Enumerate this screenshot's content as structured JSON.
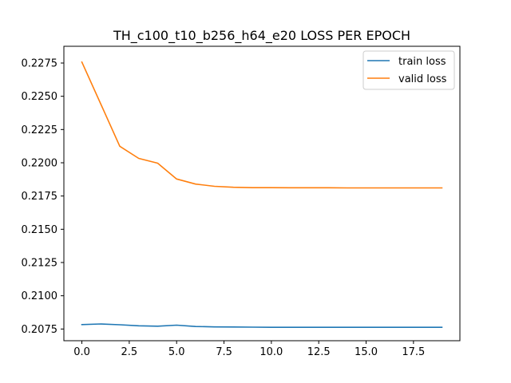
{
  "chart_data": {
    "type": "line",
    "title": "TH_c100_t10_b256_h64_e20 LOSS PER EPOCH",
    "xlabel": "",
    "ylabel": "",
    "x": [
      0,
      1,
      2,
      3,
      4,
      5,
      6,
      7,
      8,
      9,
      10,
      11,
      12,
      13,
      14,
      15,
      16,
      17,
      18,
      19
    ],
    "xlim": [
      -0.95,
      19.95
    ],
    "ylim": [
      0.20662,
      0.22876
    ],
    "xticks": [
      0.0,
      2.5,
      5.0,
      7.5,
      10.0,
      12.5,
      15.0,
      17.5
    ],
    "xtick_labels": [
      "0.0",
      "2.5",
      "5.0",
      "7.5",
      "10.0",
      "12.5",
      "15.0",
      "17.5"
    ],
    "yticks": [
      0.2075,
      0.21,
      0.2125,
      0.215,
      0.2175,
      0.22,
      0.2225,
      0.225,
      0.2275
    ],
    "ytick_labels": [
      "0.2075",
      "0.2100",
      "0.2125",
      "0.2150",
      "0.2175",
      "0.2200",
      "0.2225",
      "0.2250",
      "0.2275"
    ],
    "grid": false,
    "legend_position": "top-right",
    "series": [
      {
        "name": "train loss",
        "color": "#1f77b4",
        "values": [
          0.20783,
          0.20788,
          0.20782,
          0.20774,
          0.20771,
          0.20779,
          0.20769,
          0.20766,
          0.20765,
          0.20764,
          0.20763,
          0.20763,
          0.20763,
          0.20763,
          0.20763,
          0.20763,
          0.20763,
          0.20763,
          0.20763,
          0.20763
        ]
      },
      {
        "name": "valid loss",
        "color": "#ff7f0e",
        "values": [
          0.22757,
          0.22441,
          0.22124,
          0.22033,
          0.21997,
          0.21878,
          0.2184,
          0.21823,
          0.21816,
          0.21813,
          0.21813,
          0.21812,
          0.21812,
          0.21812,
          0.21811,
          0.21811,
          0.21811,
          0.21811,
          0.21811,
          0.21811
        ]
      }
    ]
  }
}
